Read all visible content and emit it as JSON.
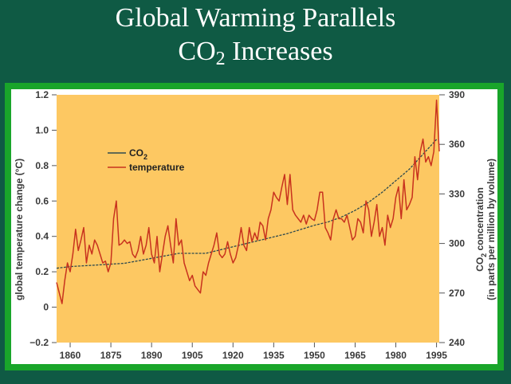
{
  "slide": {
    "title_line1": "Global Warming Parallels",
    "title_line2_prefix": "CO",
    "title_line2_sub": "2",
    "title_line2_suffix": " Increases"
  },
  "colors": {
    "background": "#0f5a44",
    "frame": "#19a52a",
    "plot_fill": "#fdc862",
    "temperature_line": "#c8321e",
    "co2_line": "#2e4a4e"
  },
  "chart_data": {
    "type": "line",
    "title": "",
    "xlabel": "",
    "ylabel": "global temperature change (°C)",
    "y2label_line1_prefix": "CO",
    "y2label_line1_sub": "2",
    "y2label_line1_suffix": " concentration",
    "y2label_line2": "(in parts per million by volume)",
    "xlim": [
      1855,
      1996
    ],
    "ylim": [
      -0.2,
      1.2
    ],
    "y2lim": [
      240,
      390
    ],
    "x_ticks": [
      1860,
      1875,
      1890,
      1905,
      1920,
      1935,
      1950,
      1965,
      1980,
      1995
    ],
    "x_tick_labels": [
      "1860",
      "1875",
      "1890",
      "1905",
      "1920",
      "1935",
      "1950",
      "1965",
      "1980",
      "1995"
    ],
    "y_ticks": [
      -0.2,
      0,
      0.2,
      0.4,
      0.6,
      0.8,
      1.0,
      1.2
    ],
    "y_tick_labels": [
      "−0.2",
      "0",
      "0.2",
      "0.4",
      "0.6",
      "0.8",
      "1.0",
      "1.2"
    ],
    "y2_ticks": [
      240,
      270,
      300,
      330,
      360,
      390
    ],
    "y2_tick_labels": [
      "240",
      "270",
      "300",
      "330",
      "360",
      "390"
    ],
    "legend": {
      "position": "upper-left",
      "entries": [
        {
          "label_prefix": "CO",
          "label_sub": "2",
          "series": "co2"
        },
        {
          "label_prefix": "temperature",
          "label_sub": "",
          "series": "temperature"
        }
      ]
    },
    "series": [
      {
        "name": "temperature",
        "axis": "left",
        "x": [
          1855,
          1856,
          1857,
          1858,
          1859,
          1860,
          1861,
          1862,
          1863,
          1864,
          1865,
          1866,
          1867,
          1868,
          1869,
          1870,
          1871,
          1872,
          1873,
          1874,
          1875,
          1876,
          1877,
          1878,
          1879,
          1880,
          1881,
          1882,
          1883,
          1884,
          1885,
          1886,
          1887,
          1888,
          1889,
          1890,
          1891,
          1892,
          1893,
          1894,
          1895,
          1896,
          1897,
          1898,
          1899,
          1900,
          1901,
          1902,
          1903,
          1904,
          1905,
          1906,
          1907,
          1908,
          1909,
          1910,
          1911,
          1912,
          1913,
          1914,
          1915,
          1916,
          1917,
          1918,
          1919,
          1920,
          1921,
          1922,
          1923,
          1924,
          1925,
          1926,
          1927,
          1928,
          1929,
          1930,
          1931,
          1932,
          1933,
          1934,
          1935,
          1936,
          1937,
          1938,
          1939,
          1940,
          1941,
          1942,
          1943,
          1944,
          1945,
          1946,
          1947,
          1948,
          1949,
          1950,
          1951,
          1952,
          1953,
          1954,
          1955,
          1956,
          1957,
          1958,
          1959,
          1960,
          1961,
          1962,
          1963,
          1964,
          1965,
          1966,
          1967,
          1968,
          1969,
          1970,
          1971,
          1972,
          1973,
          1974,
          1975,
          1976,
          1977,
          1978,
          1979,
          1980,
          1981,
          1982,
          1983,
          1984,
          1985,
          1986,
          1987,
          1988,
          1989,
          1990,
          1991,
          1992,
          1993,
          1994,
          1995,
          1996
        ],
        "values": [
          0.14,
          0.08,
          0.02,
          0.15,
          0.25,
          0.2,
          0.3,
          0.44,
          0.32,
          0.38,
          0.45,
          0.25,
          0.35,
          0.3,
          0.38,
          0.35,
          0.3,
          0.25,
          0.26,
          0.2,
          0.25,
          0.5,
          0.6,
          0.35,
          0.36,
          0.38,
          0.36,
          0.37,
          0.3,
          0.28,
          0.32,
          0.4,
          0.3,
          0.35,
          0.45,
          0.3,
          0.25,
          0.4,
          0.2,
          0.3,
          0.4,
          0.46,
          0.35,
          0.25,
          0.5,
          0.35,
          0.38,
          0.25,
          0.2,
          0.15,
          0.18,
          0.12,
          0.1,
          0.08,
          0.2,
          0.18,
          0.25,
          0.3,
          0.35,
          0.42,
          0.3,
          0.28,
          0.3,
          0.37,
          0.3,
          0.25,
          0.28,
          0.35,
          0.45,
          0.35,
          0.32,
          0.45,
          0.37,
          0.42,
          0.38,
          0.48,
          0.46,
          0.38,
          0.5,
          0.55,
          0.65,
          0.62,
          0.6,
          0.68,
          0.75,
          0.58,
          0.75,
          0.55,
          0.52,
          0.5,
          0.48,
          0.52,
          0.47,
          0.52,
          0.5,
          0.49,
          0.55,
          0.65,
          0.65,
          0.45,
          0.42,
          0.38,
          0.5,
          0.55,
          0.5,
          0.5,
          0.48,
          0.52,
          0.45,
          0.38,
          0.4,
          0.5,
          0.48,
          0.42,
          0.6,
          0.55,
          0.4,
          0.48,
          0.58,
          0.4,
          0.45,
          0.35,
          0.52,
          0.45,
          0.5,
          0.62,
          0.68,
          0.5,
          0.72,
          0.55,
          0.58,
          0.62,
          0.85,
          0.72,
          0.88,
          0.95,
          0.82,
          0.85,
          0.8,
          0.88,
          1.17,
          0.88
        ]
      },
      {
        "name": "co2",
        "axis": "right",
        "x": [
          1855,
          1860,
          1870,
          1880,
          1890,
          1900,
          1910,
          1920,
          1930,
          1940,
          1950,
          1955,
          1960,
          1965,
          1970,
          1975,
          1980,
          1985,
          1990,
          1995
        ],
        "values": [
          285,
          286,
          287,
          288,
          291,
          294,
          294,
          298,
          302,
          306,
          311,
          313,
          316,
          320,
          325,
          331,
          338,
          345,
          354,
          363
        ]
      }
    ]
  }
}
